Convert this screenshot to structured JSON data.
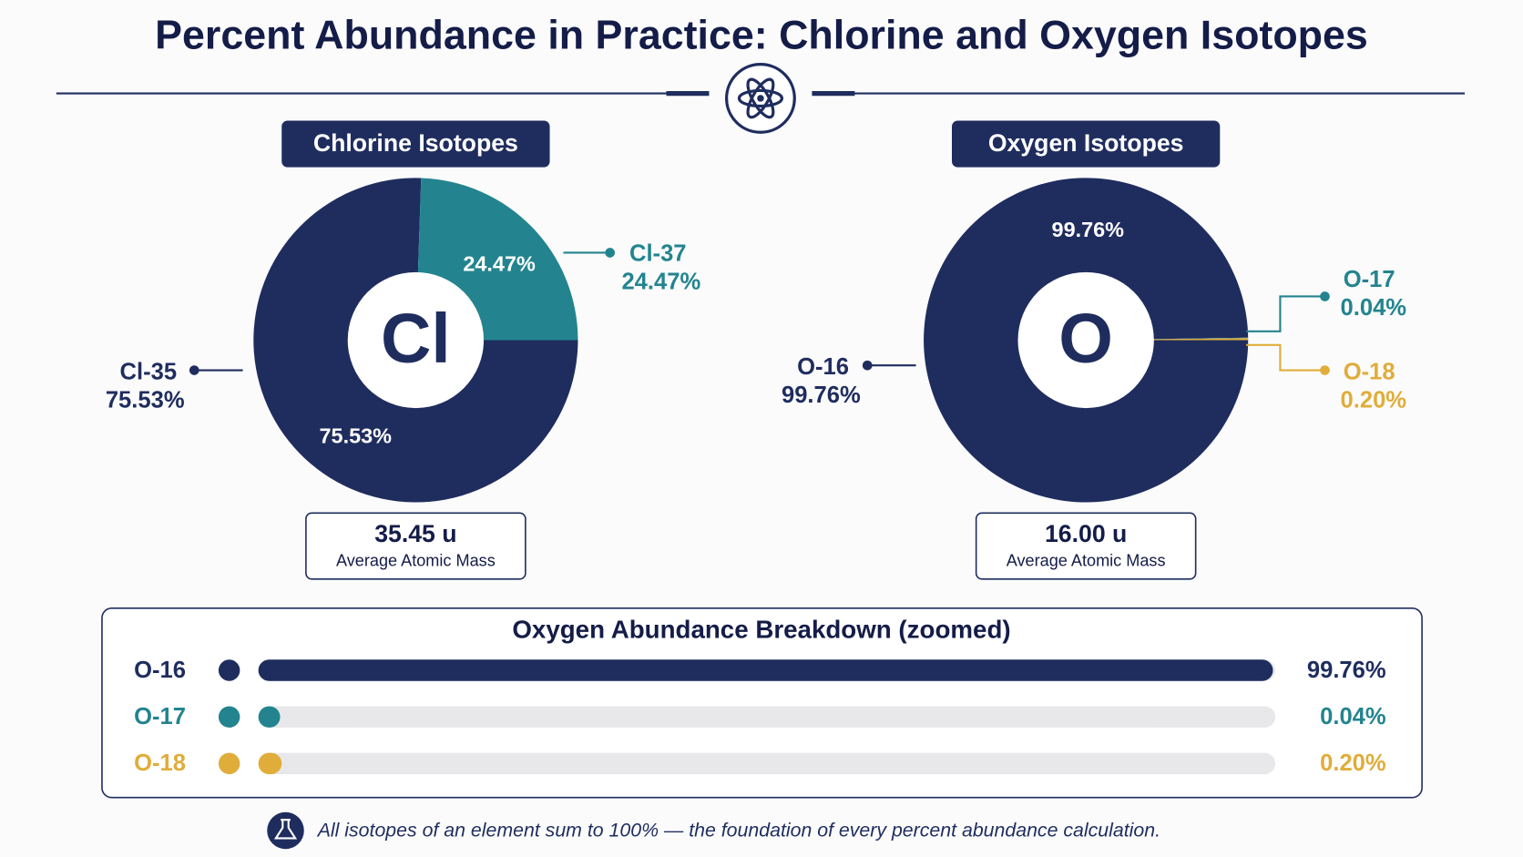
{
  "title": "Percent Abundance in Practice: Chlorine and Oxygen Isotopes",
  "footer_note": "All isotopes of an element sum to 100% — the foundation of every percent abundance calculation.",
  "chart_data": [
    {
      "type": "pie",
      "title": "Chlorine Isotopes",
      "center_label": "Cl",
      "categories": [
        "Cl-35",
        "Cl-37"
      ],
      "values": [
        75.53,
        24.47
      ],
      "value_labels": [
        "75.53%",
        "24.47%"
      ],
      "colors": [
        "#1f2d5e",
        "#23848f"
      ],
      "summary_value": "35.45 u",
      "summary_label": "Average Atomic Mass"
    },
    {
      "type": "pie",
      "title": "Oxygen Isotopes",
      "center_label": "O",
      "categories": [
        "O-16",
        "O-17",
        "O-18"
      ],
      "values": [
        99.76,
        0.04,
        0.2
      ],
      "value_labels": [
        "99.76%",
        "0.04%",
        "0.20%"
      ],
      "colors": [
        "#1f2d5e",
        "#23848f",
        "#e0ad3a"
      ],
      "summary_value": "16.00 u",
      "summary_label": "Average Atomic Mass"
    },
    {
      "type": "bar",
      "title": "Oxygen Abundance Breakdown (zoomed)",
      "categories": [
        "O-16",
        "O-17",
        "O-18"
      ],
      "values": [
        99.76,
        0.04,
        0.2
      ],
      "value_labels": [
        "99.76%",
        "0.04%",
        "0.20%"
      ],
      "colors": [
        "#1f2d5e",
        "#23848f",
        "#e0ad3a"
      ],
      "xlim": [
        0,
        100
      ]
    }
  ]
}
